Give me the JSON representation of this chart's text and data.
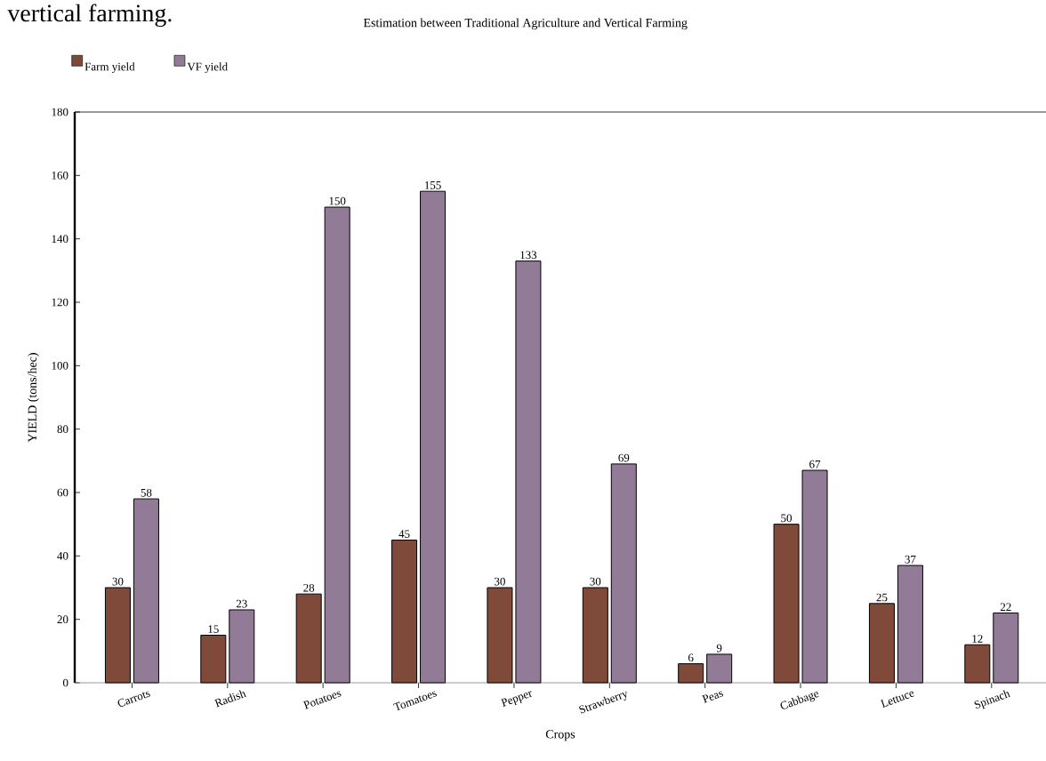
{
  "chart_data": {
    "type": "bar",
    "title": "Estimation between Traditional Agriculture and Vertical Farming",
    "xlabel": "Crops",
    "ylabel": "YIELD (tons/hec)",
    "annotations": [
      "vertical farming."
    ],
    "categories": [
      "Carrots",
      "Radish",
      "Potatoes",
      "Tomatoes",
      "Pepper",
      "Strawberry",
      "Peas",
      "Cabbage",
      "Lettuce",
      "Spinach"
    ],
    "series": [
      {
        "name": "Farm yield",
        "color": "#7f4a3a",
        "values": [
          30,
          15,
          28,
          45,
          30,
          30,
          6,
          50,
          25,
          12
        ]
      },
      {
        "name": "VF yield",
        "color": "#927b96",
        "values": [
          58,
          23,
          150,
          155,
          133,
          69,
          9,
          67,
          37,
          22
        ]
      }
    ],
    "ylim": [
      0,
      180
    ],
    "yticks": [
      0,
      20,
      40,
      60,
      80,
      100,
      120,
      140,
      160,
      180
    ],
    "data_labels": true,
    "legend": "top left",
    "grid": false
  }
}
